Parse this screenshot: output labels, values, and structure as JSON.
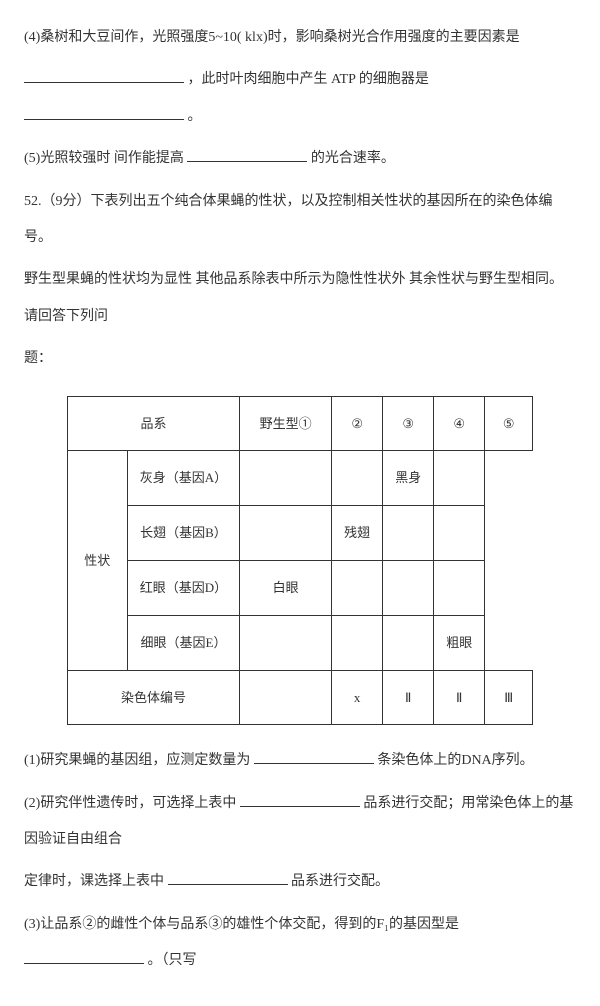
{
  "q4": {
    "line1a": "(4)桑树和大豆间作，光照强度5~10( klx)时，影响桑树光合作用强度的主要因素是",
    "line2a": "，此时叶肉细胞中产生 ATP 的细胞器是",
    "line2b": "。"
  },
  "q5": {
    "text_a": "(5)光照较强时 间作能提高",
    "text_b": "的光合速率。"
  },
  "q52": {
    "intro": "52.（9分）下表列出五个纯合体果蝇的性状，以及控制相关性状的基因所在的染色体编号。",
    "note": "野生型果蝇的性状均为显性 其他品系除表中所示为隐性性状外 其余性状与野生型相同。请回答下列问",
    "note_tail": "题：",
    "table": {
      "header_row": [
        "品系",
        "野生型①",
        "②",
        "③",
        "④",
        "⑤"
      ],
      "trait_label": "性状",
      "trait_rows": [
        {
          "col1": "灰身（基因A）",
          "cells": [
            "",
            "",
            "黑身",
            ""
          ]
        },
        {
          "col1": "长翅（基因B）",
          "cells": [
            "",
            "残翅",
            "",
            ""
          ]
        },
        {
          "col1": "红眼（基因D）",
          "cells": [
            "白眼",
            "",
            "",
            ""
          ]
        },
        {
          "col1": "细眼（基因E）",
          "cells": [
            "",
            "",
            "",
            "粗眼"
          ]
        }
      ],
      "chromo_label": "染色体编号",
      "chromo_cells": [
        "",
        "x",
        "Ⅱ",
        "Ⅱ",
        "Ⅲ"
      ]
    },
    "sub1_a": "(1)研究果蝇的基因组，应测定数量为",
    "sub1_b": "条染色体上的DNA序列。",
    "sub2_a": "(2)研究伴性遗传时，可选择上表中",
    "sub2_b": "品系进行交配；用常染色体上的基因验证自由组合",
    "sub2_c": "定律时，课选择上表中",
    "sub2_d": "品系进行交配。",
    "sub3_a": "(3)让品系②的雌性个体与品系③的雄性个体交配，得到的F₁的基因型是",
    "sub3_b": "。（只写"
  }
}
